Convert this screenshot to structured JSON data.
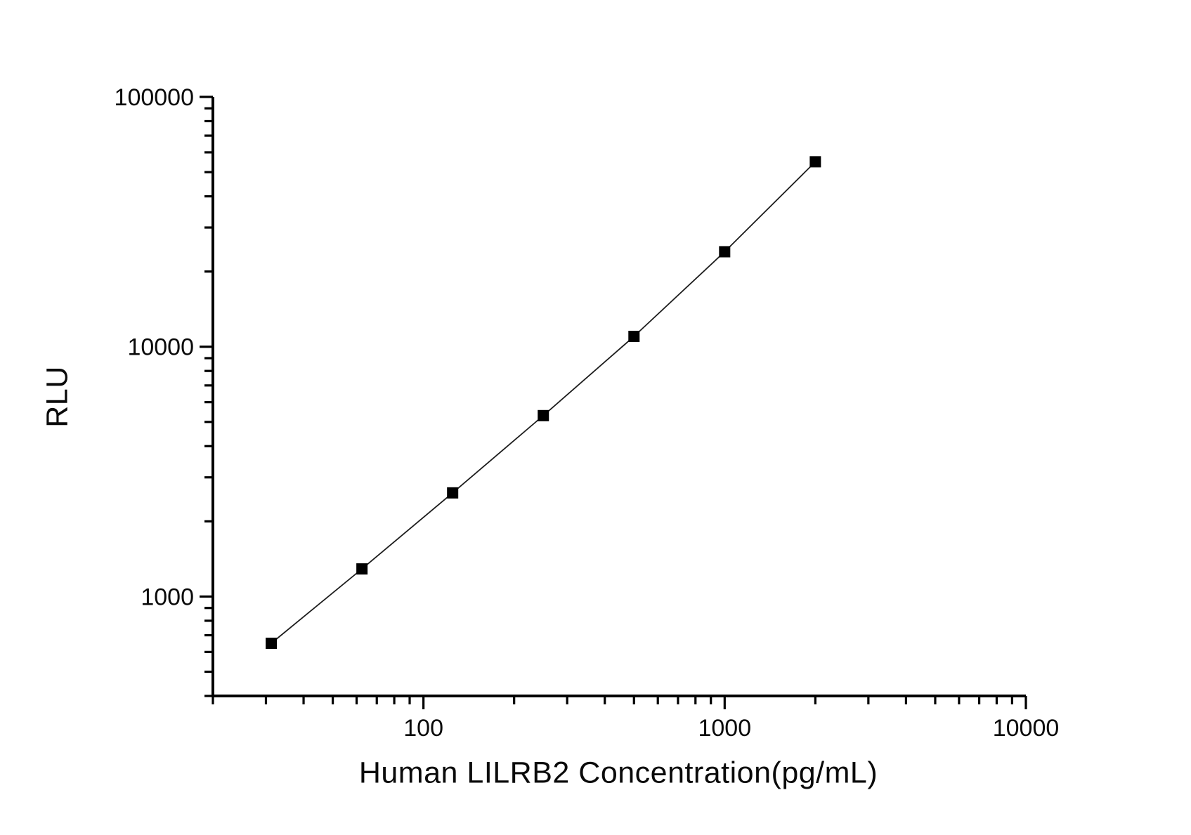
{
  "chart_data": {
    "type": "line",
    "title": "",
    "xlabel": "Human LILRB2 Concentration(pg/mL)",
    "ylabel": "RLU",
    "x_scale": "log",
    "y_scale": "log",
    "x": [
      31.25,
      62.5,
      125,
      250,
      500,
      1000,
      2000
    ],
    "y": [
      650,
      1290,
      2600,
      5300,
      11000,
      24000,
      55000
    ],
    "xlim": [
      20,
      10000
    ],
    "ylim": [
      400,
      100000
    ],
    "x_ticks": [
      100,
      1000,
      10000
    ],
    "x_tick_labels": [
      "100",
      "1000",
      "10000"
    ],
    "y_ticks": [
      1000,
      10000,
      100000
    ],
    "y_tick_labels": [
      "1000",
      "10000",
      "100000"
    ],
    "minor_ticks": "log-decades",
    "grid": false,
    "legend": null,
    "marker": "filled-square",
    "marker_size": 16,
    "marker_color": "#000000",
    "line_color": "#1c1c1c",
    "axis_color": "#000000",
    "background": "#ffffff"
  }
}
